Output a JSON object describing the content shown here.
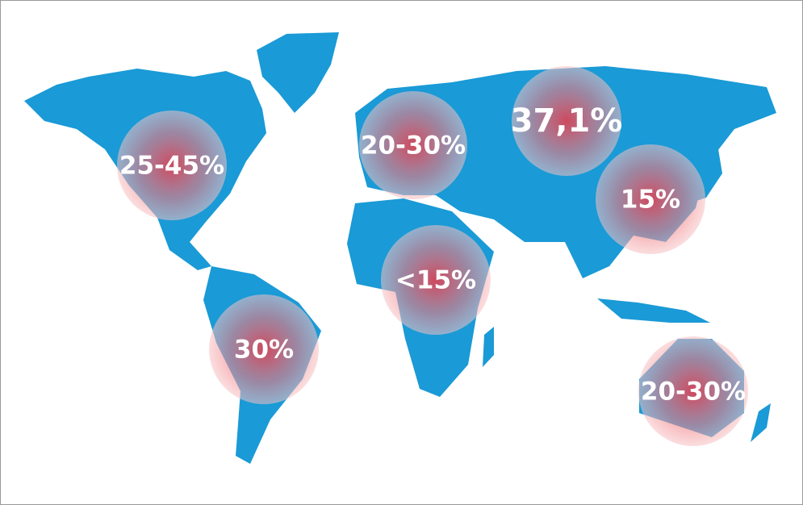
{
  "regions": [
    {
      "label": "25-45%"
    },
    {
      "label": "20-30%"
    },
    {
      "label": "37,1%"
    },
    {
      "label": "15%"
    },
    {
      "label": "<15%"
    },
    {
      "label": "30%"
    },
    {
      "label": "20-30%"
    }
  ]
}
